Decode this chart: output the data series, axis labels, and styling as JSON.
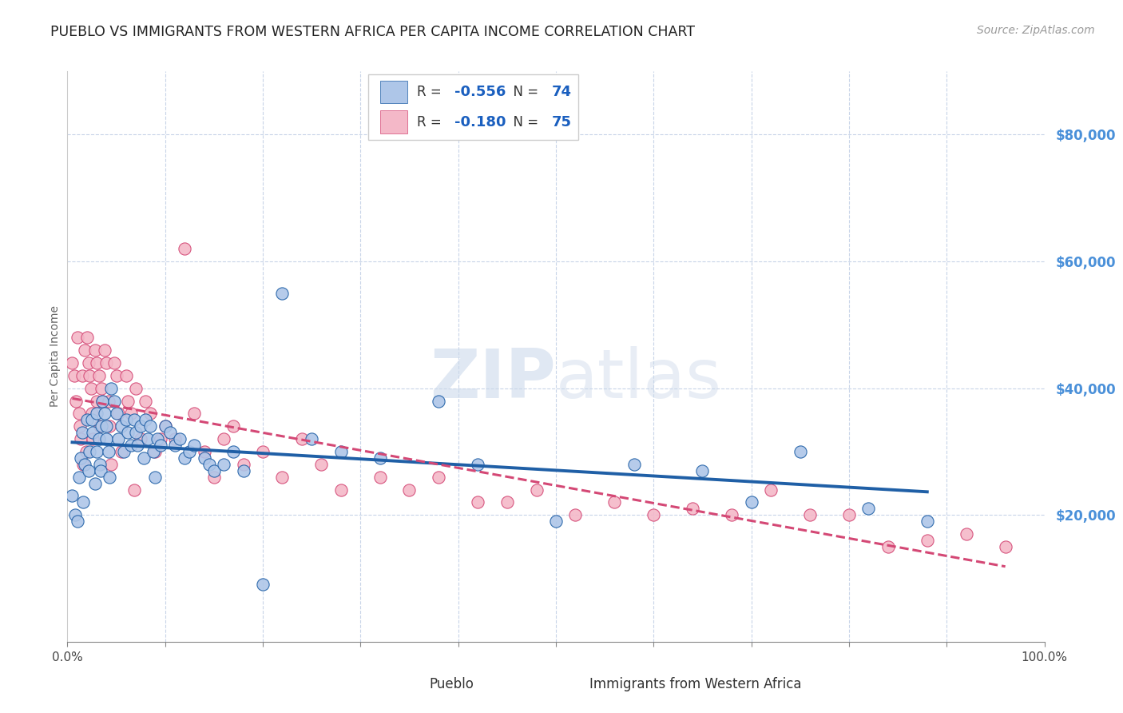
{
  "title": "PUEBLO VS IMMIGRANTS FROM WESTERN AFRICA PER CAPITA INCOME CORRELATION CHART",
  "source": "Source: ZipAtlas.com",
  "ylabel": "Per Capita Income",
  "watermark_zip": "ZIP",
  "watermark_atlas": "atlas",
  "legend_pueblo": "Pueblo",
  "legend_immigrants": "Immigrants from Western Africa",
  "pueblo_R": -0.556,
  "pueblo_N": 74,
  "immigrants_R": -0.18,
  "immigrants_N": 75,
  "pueblo_color": "#aec6e8",
  "pueblo_line_color": "#1f5fa6",
  "immigrants_color": "#f4b8c8",
  "immigrants_line_color": "#d44875",
  "background_color": "#ffffff",
  "grid_color": "#c8d4e8",
  "right_axis_color": "#4a90d9",
  "title_fontsize": 12.5,
  "source_fontsize": 10,
  "ylabel_fontsize": 10,
  "tick_fontsize": 11,
  "xlim": [
    0.0,
    1.0
  ],
  "ylim": [
    0,
    90000
  ],
  "right_yticks": [
    20000,
    40000,
    60000,
    80000
  ],
  "right_yticklabels": [
    "$20,000",
    "$40,000",
    "$60,000",
    "$80,000"
  ],
  "pueblo_scatter_x": [
    0.005,
    0.008,
    0.01,
    0.012,
    0.014,
    0.015,
    0.016,
    0.018,
    0.02,
    0.022,
    0.023,
    0.025,
    0.026,
    0.028,
    0.03,
    0.03,
    0.032,
    0.033,
    0.034,
    0.035,
    0.036,
    0.038,
    0.04,
    0.04,
    0.042,
    0.043,
    0.045,
    0.048,
    0.05,
    0.052,
    0.055,
    0.058,
    0.06,
    0.062,
    0.065,
    0.068,
    0.07,
    0.072,
    0.075,
    0.078,
    0.08,
    0.082,
    0.085,
    0.088,
    0.09,
    0.092,
    0.095,
    0.1,
    0.105,
    0.11,
    0.115,
    0.12,
    0.125,
    0.13,
    0.14,
    0.145,
    0.15,
    0.16,
    0.17,
    0.18,
    0.2,
    0.22,
    0.25,
    0.28,
    0.32,
    0.38,
    0.42,
    0.5,
    0.58,
    0.65,
    0.7,
    0.75,
    0.82,
    0.88
  ],
  "pueblo_scatter_y": [
    23000,
    20000,
    19000,
    26000,
    29000,
    33000,
    22000,
    28000,
    35000,
    27000,
    30000,
    35000,
    33000,
    25000,
    36000,
    30000,
    32000,
    28000,
    27000,
    34000,
    38000,
    36000,
    34000,
    32000,
    30000,
    26000,
    40000,
    38000,
    36000,
    32000,
    34000,
    30000,
    35000,
    33000,
    31000,
    35000,
    33000,
    31000,
    34000,
    29000,
    35000,
    32000,
    34000,
    30000,
    26000,
    32000,
    31000,
    34000,
    33000,
    31000,
    32000,
    29000,
    30000,
    31000,
    29000,
    28000,
    27000,
    28000,
    30000,
    27000,
    9000,
    55000,
    32000,
    30000,
    29000,
    38000,
    28000,
    19000,
    28000,
    27000,
    22000,
    30000,
    21000,
    19000
  ],
  "immigrants_scatter_x": [
    0.005,
    0.007,
    0.009,
    0.01,
    0.012,
    0.013,
    0.014,
    0.015,
    0.016,
    0.018,
    0.019,
    0.02,
    0.022,
    0.023,
    0.024,
    0.025,
    0.026,
    0.028,
    0.03,
    0.03,
    0.032,
    0.033,
    0.035,
    0.036,
    0.038,
    0.04,
    0.042,
    0.043,
    0.045,
    0.048,
    0.05,
    0.052,
    0.055,
    0.06,
    0.062,
    0.065,
    0.068,
    0.07,
    0.075,
    0.08,
    0.085,
    0.09,
    0.095,
    0.1,
    0.11,
    0.12,
    0.13,
    0.14,
    0.15,
    0.16,
    0.17,
    0.18,
    0.2,
    0.22,
    0.24,
    0.26,
    0.28,
    0.32,
    0.35,
    0.38,
    0.42,
    0.45,
    0.48,
    0.52,
    0.56,
    0.6,
    0.64,
    0.68,
    0.72,
    0.76,
    0.8,
    0.84,
    0.88,
    0.92,
    0.96
  ],
  "immigrants_scatter_y": [
    44000,
    42000,
    38000,
    48000,
    36000,
    34000,
    32000,
    42000,
    28000,
    46000,
    30000,
    48000,
    44000,
    42000,
    40000,
    36000,
    32000,
    46000,
    44000,
    38000,
    42000,
    34000,
    40000,
    38000,
    46000,
    44000,
    38000,
    34000,
    28000,
    44000,
    42000,
    36000,
    30000,
    42000,
    38000,
    36000,
    24000,
    40000,
    32000,
    38000,
    36000,
    30000,
    32000,
    34000,
    32000,
    62000,
    36000,
    30000,
    26000,
    32000,
    34000,
    28000,
    30000,
    26000,
    32000,
    28000,
    24000,
    26000,
    24000,
    26000,
    22000,
    22000,
    24000,
    20000,
    22000,
    20000,
    21000,
    20000,
    24000,
    20000,
    20000,
    15000,
    16000,
    17000,
    15000
  ]
}
